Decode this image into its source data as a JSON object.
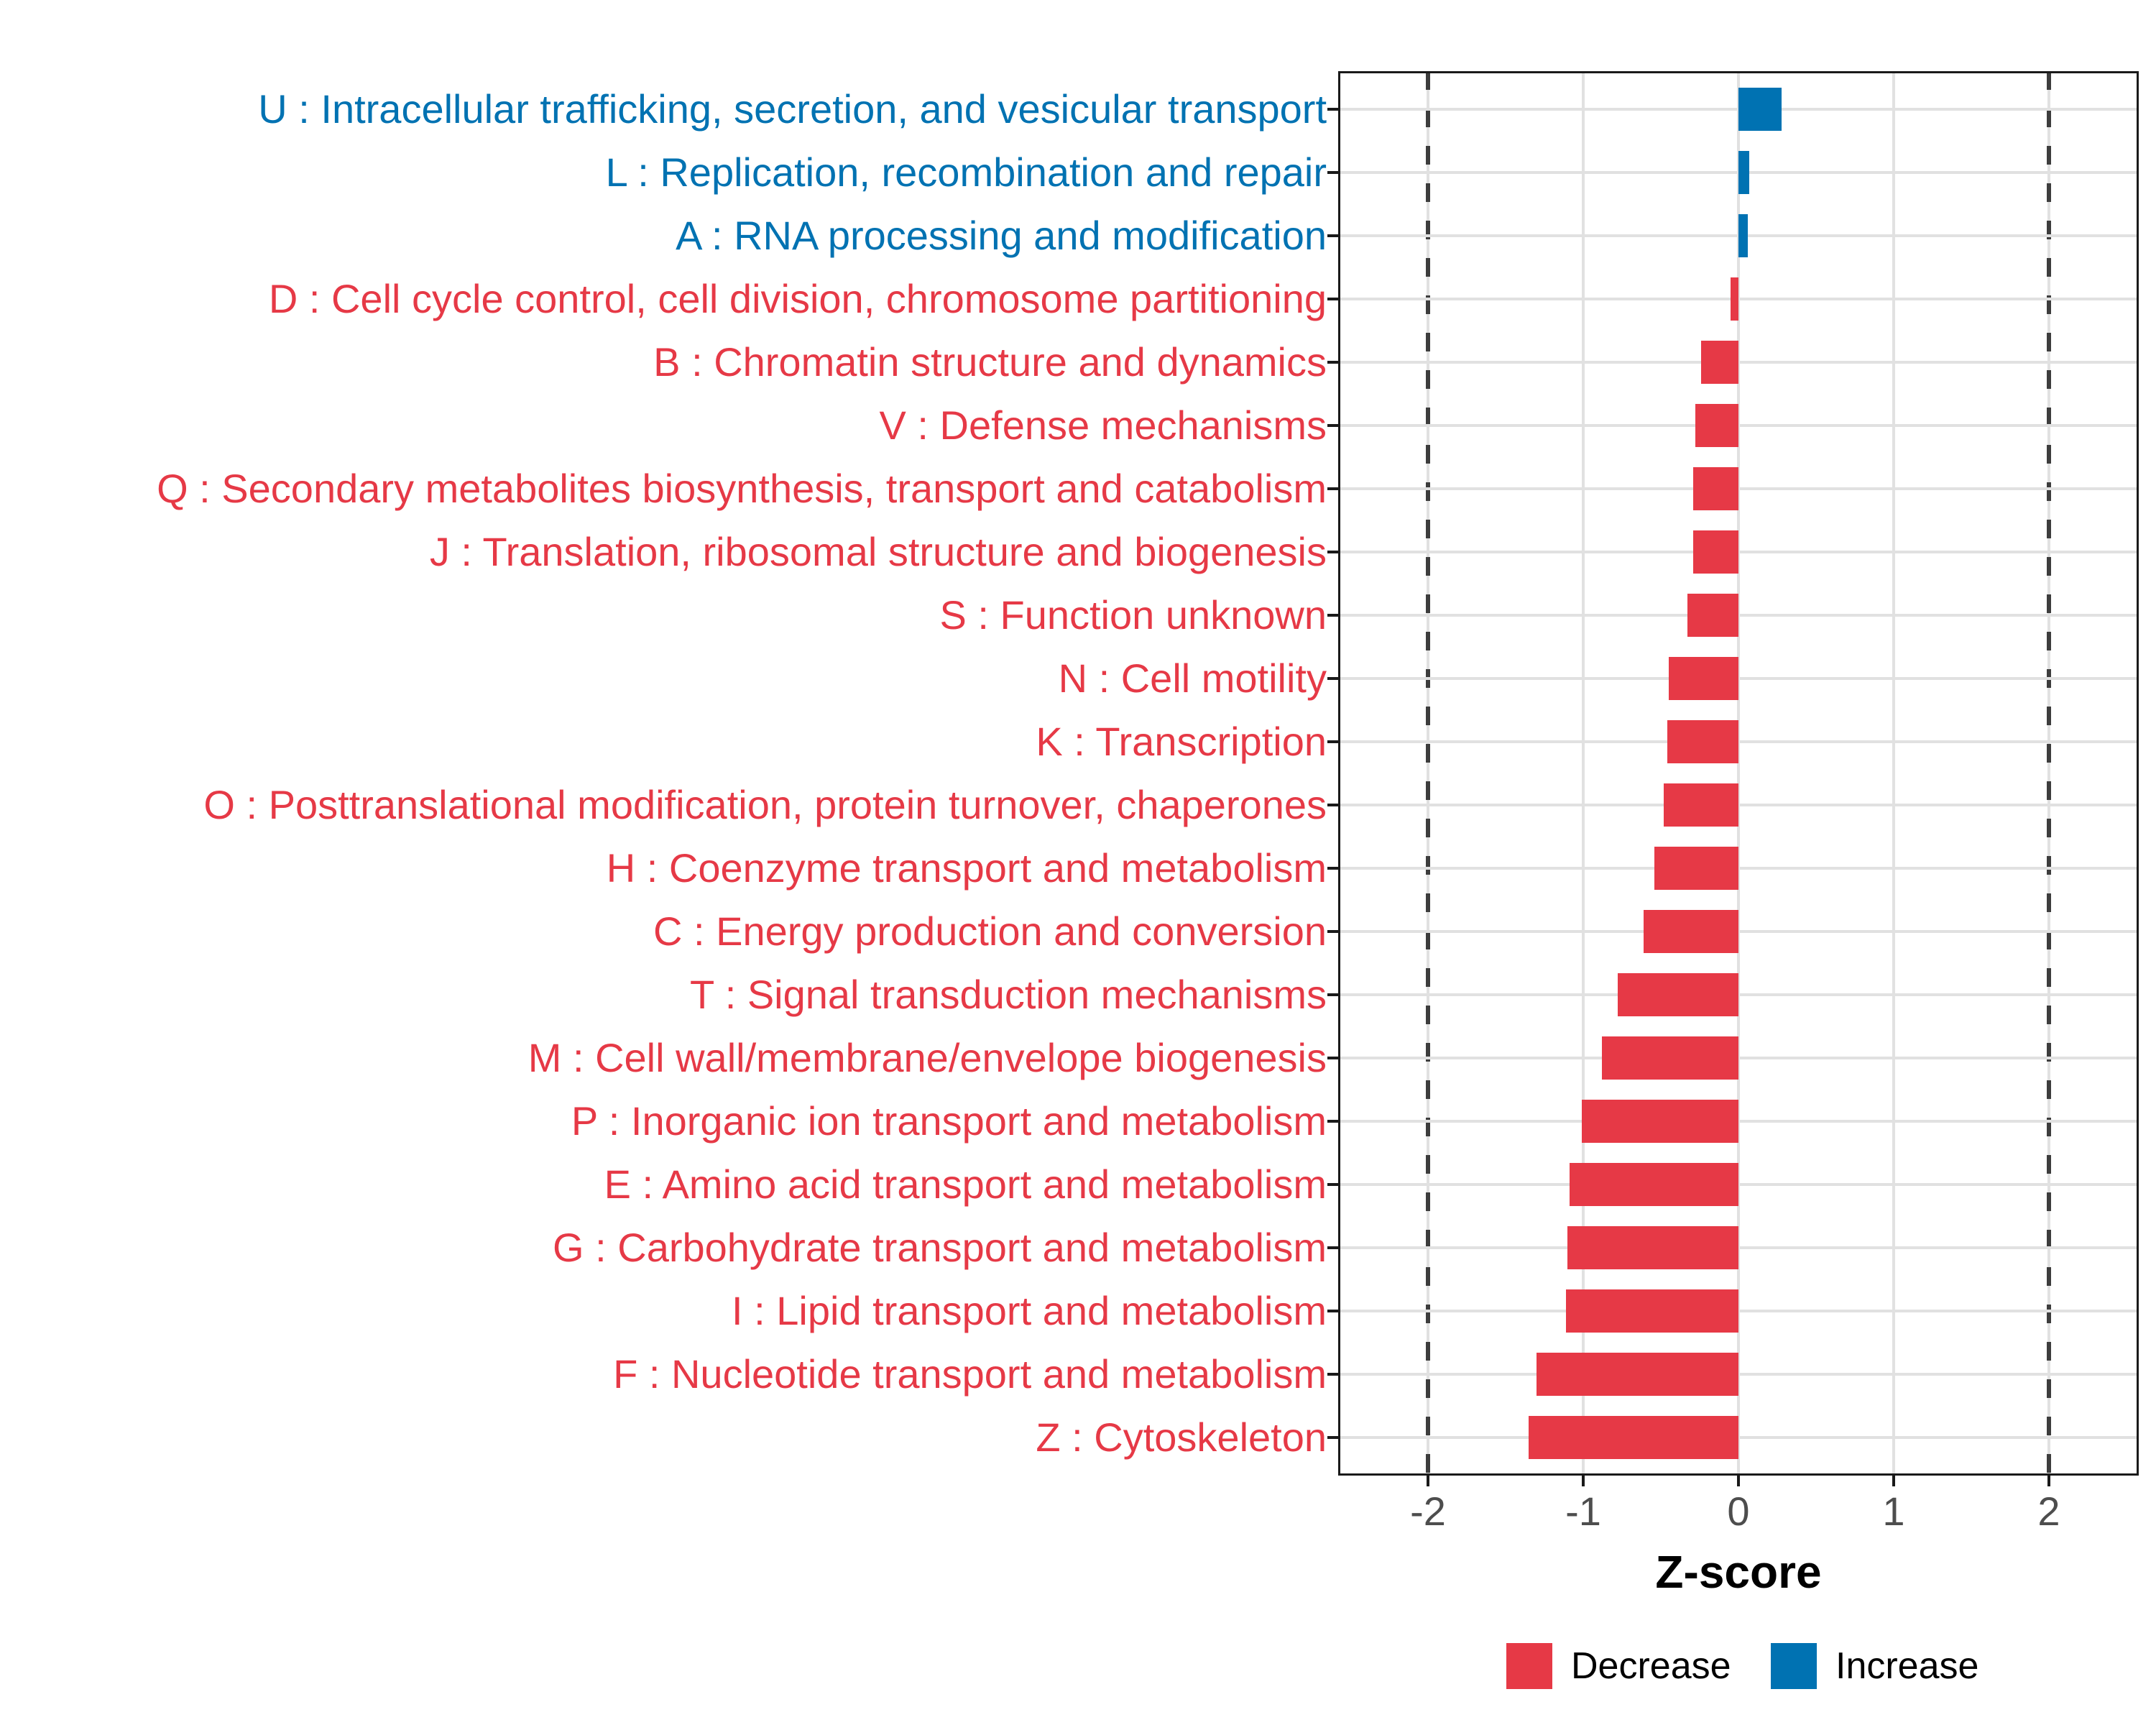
{
  "chart_data": {
    "type": "bar",
    "orientation": "horizontal",
    "title": "",
    "xlabel": "Z-score",
    "categories": [
      "U : Intracellular trafficking, secretion, and vesicular transport",
      "L : Replication, recombination and repair",
      "A : RNA processing and modification",
      "D : Cell cycle control, cell division, chromosome partitioning",
      "B : Chromatin structure and dynamics",
      "V : Defense mechanisms",
      "Q : Secondary metabolites biosynthesis, transport and catabolism",
      "J : Translation, ribosomal structure and biogenesis",
      "S : Function unknown",
      "N : Cell motility",
      "K : Transcription",
      "O : Posttranslational modification, protein turnover, chaperones",
      "H : Coenzyme transport and metabolism",
      "C : Energy production and conversion",
      "T : Signal transduction mechanisms",
      "M : Cell wall/membrane/envelope biogenesis",
      "P : Inorganic ion transport and metabolism",
      "E : Amino acid transport and metabolism",
      "G : Carbohydrate transport and metabolism",
      "I : Lipid transport and metabolism",
      "F : Nucleotide transport and metabolism",
      "Z : Cytoskeleton"
    ],
    "values": [
      0.28,
      0.07,
      0.06,
      -0.05,
      -0.24,
      -0.28,
      -0.29,
      -0.29,
      -0.33,
      -0.45,
      -0.46,
      -0.48,
      -0.54,
      -0.61,
      -0.78,
      -0.88,
      -1.01,
      -1.09,
      -1.1,
      -1.11,
      -1.3,
      -1.35
    ],
    "x_ticks": [
      "-2",
      "-1",
      "0",
      "1",
      "2"
    ],
    "x_tick_values": [
      -2,
      -1,
      0,
      1,
      2
    ],
    "xlim": [
      -2.58,
      2.58
    ],
    "reference_lines": [
      -2,
      2
    ],
    "grid": "on",
    "colors": {
      "decrease": "#E63946",
      "increase": "#0072B2",
      "gridline": "#e1e1e1",
      "reference_line": "#3d3d3d",
      "axis_text": "#4d4d4d",
      "panel_border": "#1a1a1a"
    },
    "legend": {
      "position": "bottom-right",
      "entries": [
        {
          "label": "Decrease",
          "color": "#E63946"
        },
        {
          "label": "Increase",
          "color": "#0072B2"
        }
      ]
    }
  }
}
